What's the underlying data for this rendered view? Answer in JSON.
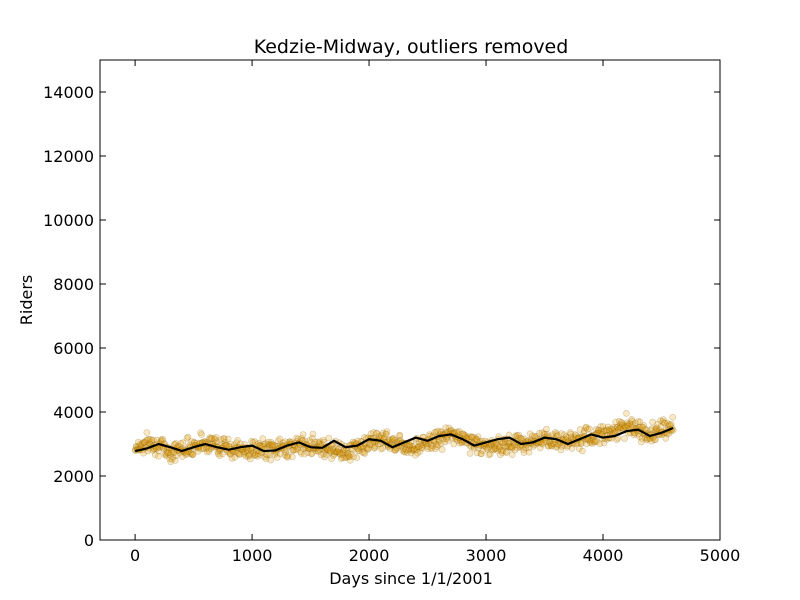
{
  "chart_data": {
    "type": "scatter",
    "title": "Kedzie-Midway, outliers removed",
    "xlabel": "Days since 1/1/2001",
    "ylabel": "Riders",
    "xlim": [
      -300,
      5000
    ],
    "ylim": [
      0,
      15000
    ],
    "xticks": [
      0,
      1000,
      2000,
      3000,
      4000,
      5000
    ],
    "yticks": [
      0,
      2000,
      4000,
      6000,
      8000,
      10000,
      12000,
      14000
    ],
    "grid": false,
    "series": [
      {
        "name": "",
        "style": "scatter",
        "color": "#e8a317",
        "edge_color": "#8a6000",
        "opacity": 0.25,
        "x_range": [
          0,
          4600
        ],
        "trend_points": [
          [
            0,
            2900
          ],
          [
            150,
            3050
          ],
          [
            300,
            2750
          ],
          [
            600,
            3050
          ],
          [
            900,
            2800
          ],
          [
            1200,
            2850
          ],
          [
            1500,
            3000
          ],
          [
            1800,
            2750
          ],
          [
            2100,
            3150
          ],
          [
            2400,
            2900
          ],
          [
            2700,
            3300
          ],
          [
            3000,
            2900
          ],
          [
            3300,
            3050
          ],
          [
            3600,
            3100
          ],
          [
            3900,
            3200
          ],
          [
            4200,
            3550
          ],
          [
            4400,
            3300
          ],
          [
            4600,
            3550
          ]
        ],
        "spread": 220
      },
      {
        "name": "",
        "style": "line",
        "color": "#000000",
        "points": [
          [
            0,
            2780
          ],
          [
            100,
            2860
          ],
          [
            200,
            3000
          ],
          [
            300,
            2900
          ],
          [
            400,
            2780
          ],
          [
            500,
            2900
          ],
          [
            600,
            3000
          ],
          [
            700,
            2900
          ],
          [
            800,
            2820
          ],
          [
            900,
            2900
          ],
          [
            1000,
            2950
          ],
          [
            1100,
            2780
          ],
          [
            1200,
            2800
          ],
          [
            1300,
            2950
          ],
          [
            1400,
            3050
          ],
          [
            1500,
            2900
          ],
          [
            1600,
            2880
          ],
          [
            1700,
            3100
          ],
          [
            1800,
            2900
          ],
          [
            1900,
            2950
          ],
          [
            2000,
            3150
          ],
          [
            2100,
            3100
          ],
          [
            2200,
            2900
          ],
          [
            2300,
            3050
          ],
          [
            2400,
            3200
          ],
          [
            2500,
            3100
          ],
          [
            2600,
            3250
          ],
          [
            2700,
            3300
          ],
          [
            2800,
            3150
          ],
          [
            2900,
            2950
          ],
          [
            3000,
            3050
          ],
          [
            3100,
            3150
          ],
          [
            3200,
            3200
          ],
          [
            3300,
            3000
          ],
          [
            3400,
            3050
          ],
          [
            3500,
            3200
          ],
          [
            3600,
            3150
          ],
          [
            3700,
            3000
          ],
          [
            3800,
            3150
          ],
          [
            3900,
            3300
          ],
          [
            4000,
            3200
          ],
          [
            4100,
            3250
          ],
          [
            4200,
            3400
          ],
          [
            4300,
            3450
          ],
          [
            4400,
            3250
          ],
          [
            4500,
            3350
          ],
          [
            4600,
            3500
          ]
        ]
      }
    ]
  }
}
